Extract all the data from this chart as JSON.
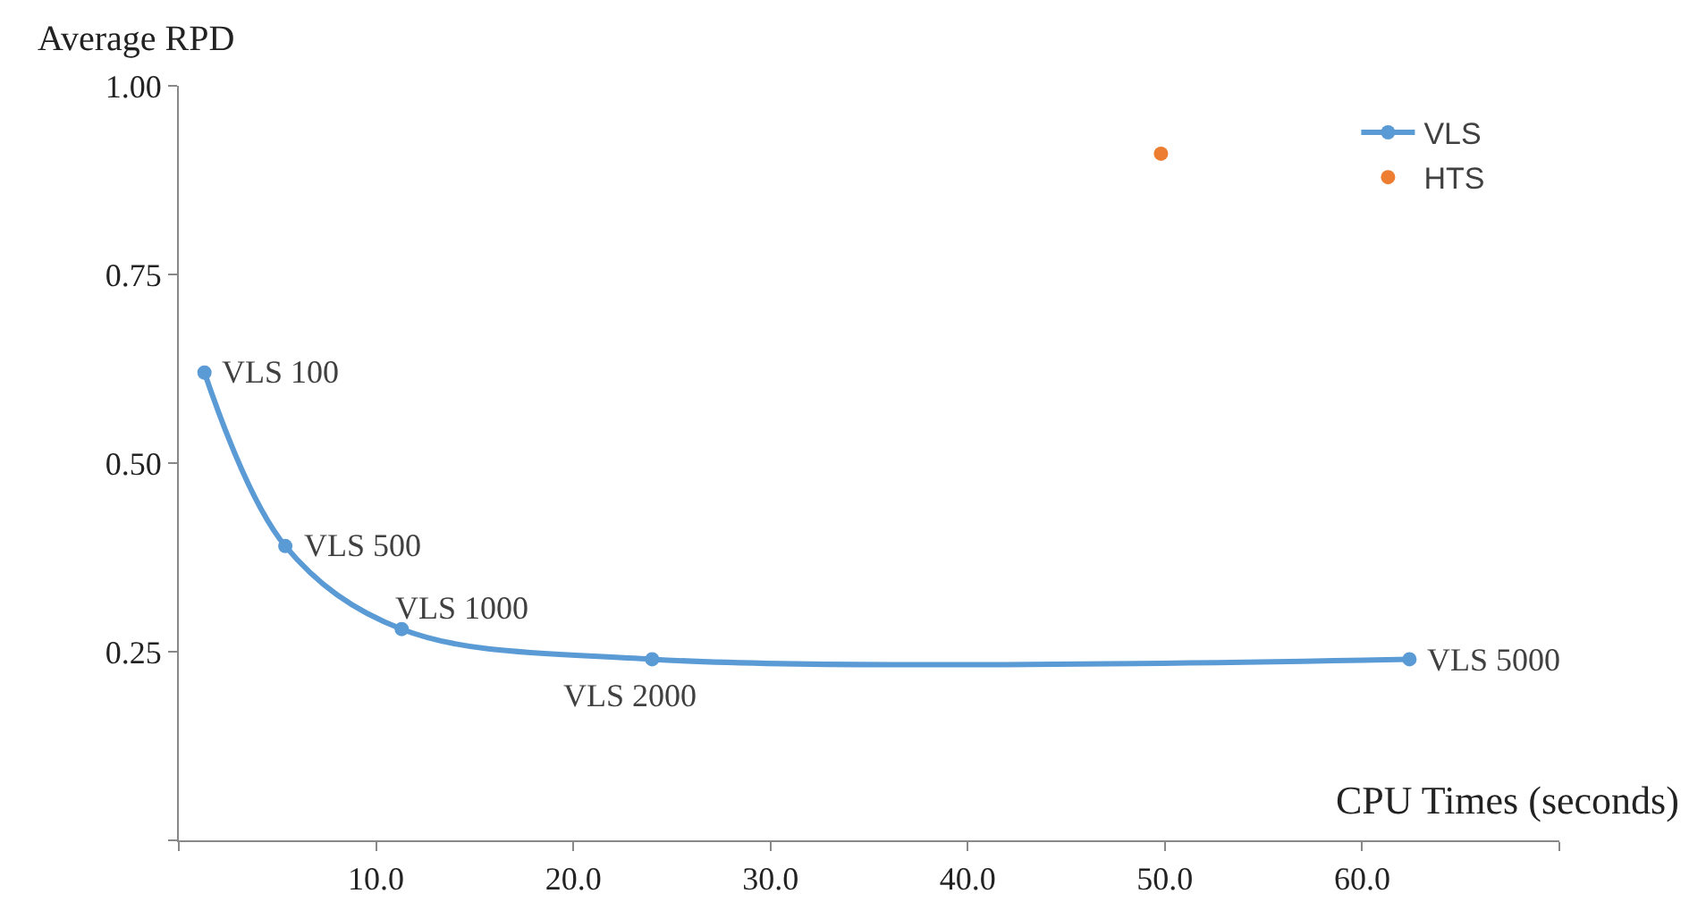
{
  "chart_data": {
    "type": "line",
    "xlabel": "CPU Times (seconds)",
    "ylabel": "Average RPD",
    "xlim": [
      0,
      70
    ],
    "ylim": [
      0,
      1
    ],
    "xticks": [
      {
        "value": 0,
        "label": null
      },
      {
        "value": 10,
        "label": "10.0"
      },
      {
        "value": 20,
        "label": "20.0"
      },
      {
        "value": 30,
        "label": "30.0"
      },
      {
        "value": 40,
        "label": "40.0"
      },
      {
        "value": 50,
        "label": "50.0"
      },
      {
        "value": 60,
        "label": "60.0"
      },
      {
        "value": 70,
        "label": null
      }
    ],
    "yticks": [
      {
        "value": 0,
        "label": null
      },
      {
        "value": 0.25,
        "label": "0.25"
      },
      {
        "value": 0.5,
        "label": "0.50"
      },
      {
        "value": 0.75,
        "label": "0.75"
      },
      {
        "value": 1,
        "label": "1.00"
      }
    ],
    "series": [
      {
        "name": "VLS",
        "color": "#5b9bd5",
        "x": [
          1.3,
          5.4,
          11.3,
          24.0,
          62.4
        ],
        "values": [
          0.62,
          0.39,
          0.28,
          0.24,
          0.24
        ]
      },
      {
        "name": "HTS",
        "color": "#ed7d31",
        "type": "scatter",
        "x": [
          49.8
        ],
        "values": [
          0.91
        ]
      }
    ],
    "annotations": [
      {
        "text": "VLS 100",
        "x": 1.3,
        "y": 0.62
      },
      {
        "text": "VLS 500",
        "x": 5.4,
        "y": 0.39
      },
      {
        "text": "VLS 1000",
        "x": 11.3,
        "y": 0.28
      },
      {
        "text": "VLS 2000",
        "x": 24.0,
        "y": 0.24
      },
      {
        "text": "VLS 5000",
        "x": 62.4,
        "y": 0.24
      }
    ],
    "marker": "circle",
    "line_style": "solid",
    "legend": "top right"
  }
}
